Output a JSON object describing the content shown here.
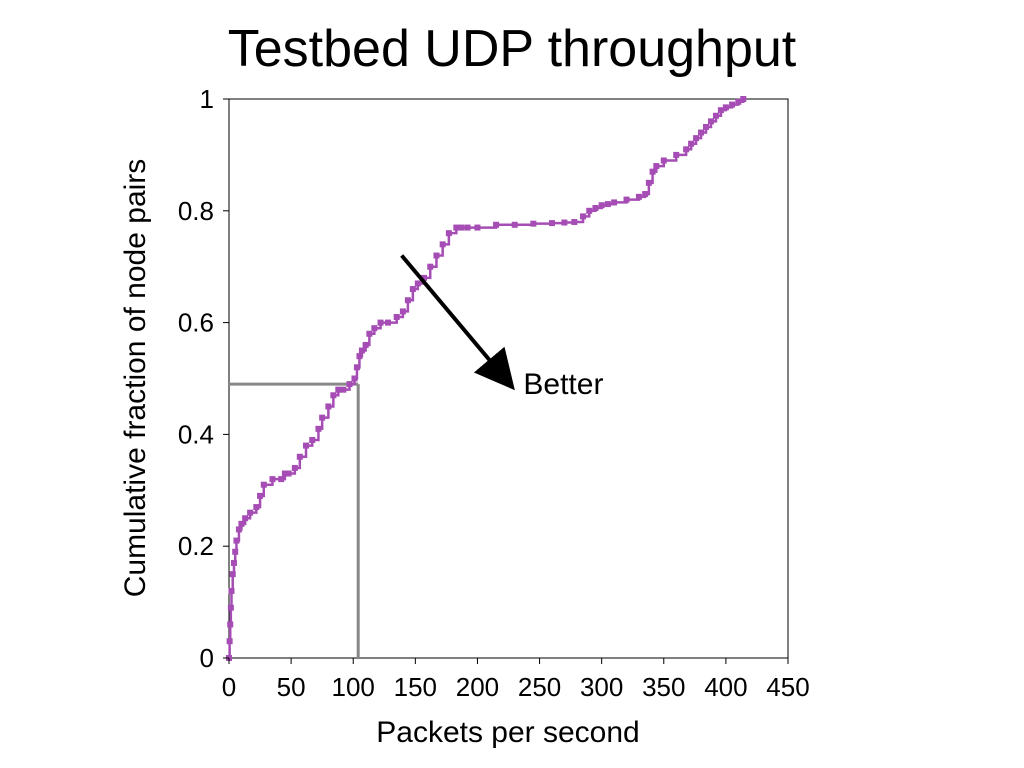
{
  "chart_data": {
    "type": "line",
    "title": "Testbed UDP throughput",
    "xlabel": "Packets per second",
    "ylabel": "Cumulative fraction of node pairs",
    "xlim": [
      0,
      450
    ],
    "ylim": [
      0,
      1
    ],
    "xticks": [
      "0",
      "50",
      "100",
      "150",
      "200",
      "250",
      "300",
      "350",
      "400",
      "450"
    ],
    "yticks": [
      "0",
      "0.2",
      "0.4",
      "0.6",
      "0.8",
      "1"
    ],
    "grid": false,
    "series_color": "#a64db5",
    "marker": "square",
    "series": [
      {
        "x": [
          0,
          0.5,
          1,
          1.5,
          2,
          3,
          4,
          5,
          6,
          8,
          10,
          13,
          17,
          22,
          25,
          28,
          35,
          42,
          45,
          48,
          53,
          57,
          62,
          67,
          72,
          75,
          80,
          84,
          88,
          92,
          97,
          101,
          103,
          105,
          107,
          110,
          113,
          117,
          122,
          128,
          135,
          140,
          144,
          148,
          152,
          157,
          162,
          167,
          172,
          177,
          183,
          187,
          192,
          200,
          215,
          230,
          245,
          260,
          270,
          278,
          285,
          290,
          295,
          300,
          305,
          310,
          320,
          330,
          335,
          338,
          341,
          344,
          350,
          360,
          368,
          372,
          376,
          380,
          384,
          388,
          392,
          396,
          400,
          405,
          410,
          414
        ],
        "y": [
          0.0,
          0.03,
          0.06,
          0.09,
          0.12,
          0.15,
          0.17,
          0.19,
          0.21,
          0.23,
          0.24,
          0.25,
          0.26,
          0.27,
          0.29,
          0.31,
          0.32,
          0.32,
          0.33,
          0.33,
          0.34,
          0.36,
          0.38,
          0.39,
          0.41,
          0.43,
          0.45,
          0.47,
          0.48,
          0.48,
          0.49,
          0.5,
          0.52,
          0.54,
          0.55,
          0.56,
          0.58,
          0.59,
          0.6,
          0.6,
          0.61,
          0.62,
          0.64,
          0.66,
          0.67,
          0.68,
          0.7,
          0.72,
          0.74,
          0.76,
          0.77,
          0.77,
          0.77,
          0.77,
          0.775,
          0.775,
          0.777,
          0.778,
          0.779,
          0.78,
          0.79,
          0.8,
          0.805,
          0.81,
          0.812,
          0.815,
          0.82,
          0.825,
          0.83,
          0.85,
          0.87,
          0.88,
          0.89,
          0.9,
          0.91,
          0.92,
          0.93,
          0.94,
          0.95,
          0.96,
          0.97,
          0.98,
          0.985,
          0.99,
          0.995,
          1.0
        ]
      }
    ],
    "reference_lines": [
      {
        "type": "horizontal",
        "y": 0.49,
        "x_from": 0,
        "x_to": 104,
        "color": "#888888"
      },
      {
        "type": "vertical",
        "x": 104,
        "y_from": 0,
        "y_to": 0.49,
        "color": "#888888"
      }
    ],
    "annotation": {
      "text": "Better",
      "arrow": {
        "x_from": 139,
        "y_from": 0.72,
        "x_to": 226,
        "y_to": 0.49
      },
      "text_x": 237,
      "text_y": 0.49
    }
  }
}
